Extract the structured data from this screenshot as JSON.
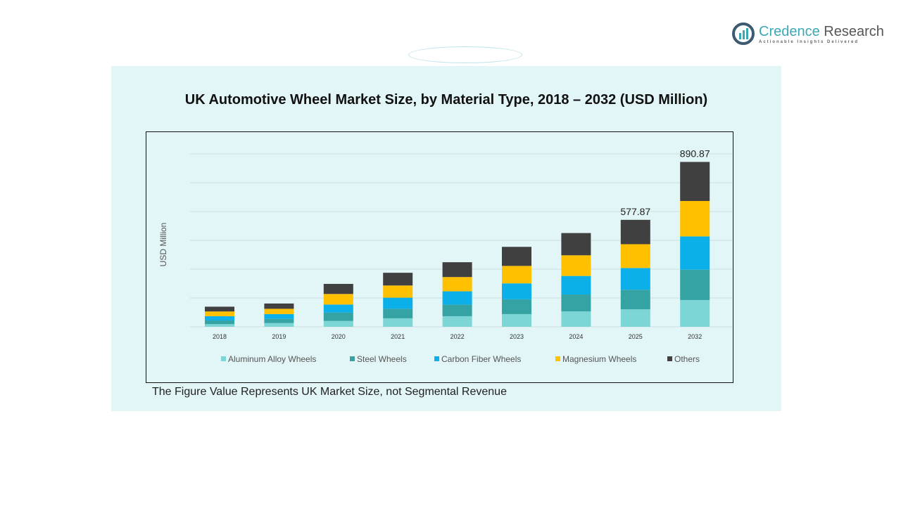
{
  "brand": {
    "name_a": "Credence",
    "name_b": "Research",
    "tagline": "Actionable Insights Delivered"
  },
  "footnote": "The Figure Value Represents UK Market Size, not Segmental Revenue",
  "chart_data": {
    "type": "bar",
    "stacked": true,
    "title": "UK Automotive Wheel Market Size, by Material Type, 2018 – 2032 (USD Million)",
    "xlabel": "",
    "ylabel": "USD Million",
    "ylim": [
      0,
      900
    ],
    "grid": true,
    "legend": "bottom",
    "categories": [
      "2018",
      "2019",
      "2020",
      "2021",
      "2022",
      "2023",
      "2024",
      "2025",
      "2032"
    ],
    "series": [
      {
        "name": "Aluminum Alloy Wheels",
        "color": "#7dd6d6",
        "values": [
          14.3,
          20.0,
          31.5,
          45.8,
          57.2,
          68.7,
          83.0,
          94.4,
          144.6
        ]
      },
      {
        "name": "Steel Wheels",
        "color": "#35a3a3",
        "values": [
          20.0,
          22.9,
          45.8,
          51.5,
          62.9,
          80.1,
          91.6,
          105.9,
          164.1
        ]
      },
      {
        "name": "Carbon Fiber Wheels",
        "color": "#0bb0ea",
        "values": [
          22.9,
          25.7,
          42.9,
          60.1,
          71.5,
          85.8,
          100.1,
          117.3,
          179.7
        ]
      },
      {
        "name": "Magnesium Wheels",
        "color": "#ffc000",
        "values": [
          25.7,
          28.6,
          57.2,
          65.8,
          77.2,
          94.4,
          111.6,
          128.7,
          191.4
        ]
      },
      {
        "name": "Others",
        "color": "#404040",
        "values": [
          25.7,
          28.6,
          54.4,
          68.7,
          80.1,
          103.0,
          120.2,
          131.57,
          211.07
        ]
      }
    ],
    "data_labels": {
      "2025": "577.87",
      "2032": "890.87"
    }
  }
}
